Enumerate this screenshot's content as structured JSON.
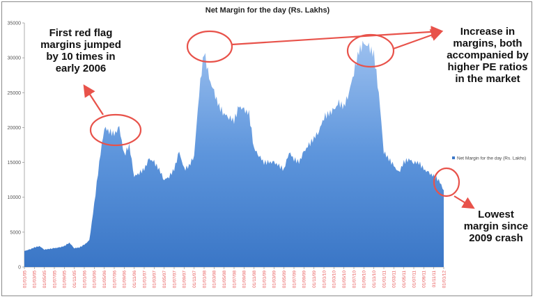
{
  "chart_data": {
    "type": "area",
    "title": "Net Margin for the day (Rs. Lakhs)",
    "xlabel": "",
    "ylabel": "",
    "ylim": [
      0,
      35000
    ],
    "yticks": [
      "0",
      "5000",
      "10000",
      "15000",
      "20000",
      "25000",
      "30000",
      "35000"
    ],
    "x_tick_labels": [
      "01/01/05",
      "01/03/05",
      "01/05/05",
      "01/07/05",
      "01/09/05",
      "01/11/05",
      "01/01/06",
      "01/03/06",
      "01/05/06",
      "01/07/06",
      "01/09/06",
      "01/11/06",
      "01/01/07",
      "01/03/07",
      "01/05/07",
      "01/07/07",
      "01/09/07",
      "01/11/07",
      "01/01/08",
      "01/03/08",
      "01/05/08",
      "01/07/08",
      "01/09/08",
      "01/11/08",
      "01/01/09",
      "01/03/09",
      "01/05/09",
      "01/07/09",
      "01/09/09",
      "01/11/09",
      "01/01/10",
      "01/03/10",
      "01/05/10",
      "01/07/10",
      "01/09/10",
      "01/11/10",
      "01/01/11",
      "01/03/11",
      "01/05/11",
      "01/07/11",
      "01/09/11",
      "01/11/11",
      "01/01/12"
    ],
    "grid": false,
    "legend": {
      "position": "right",
      "entries": [
        "Net Margin for the day (Rs. Lakhs)"
      ]
    },
    "series": [
      {
        "name": "Net Margin for the day (Rs. Lakhs)",
        "color": "#3b78c8",
        "values": [
          2300,
          2500,
          2800,
          3000,
          2500,
          2600,
          2700,
          2800,
          3000,
          3500,
          2700,
          2800,
          3200,
          3800,
          9000,
          15000,
          20000,
          19500,
          19000,
          20000,
          16000,
          17500,
          13000,
          13500,
          14000,
          15500,
          15000,
          14000,
          12500,
          13000,
          14000,
          16500,
          14000,
          14500,
          16000,
          25000,
          31000,
          27000,
          25000,
          23000,
          22000,
          21500,
          21000,
          23000,
          22500,
          22000,
          17000,
          16000,
          15000,
          15000,
          15000,
          14500,
          14000,
          16500,
          15500,
          15000,
          16500,
          17500,
          18500,
          19500,
          21500,
          22000,
          22500,
          23500,
          23000,
          25000,
          28000,
          31000,
          32000,
          31500,
          30500,
          25000,
          16500,
          15500,
          14500,
          13500,
          15000,
          15500,
          15000,
          15000,
          14000,
          13500,
          13000,
          12500,
          11000
        ]
      }
    ],
    "annotations": [
      {
        "id": "red-flag",
        "lines": [
          "First red flag",
          "margins jumped",
          "by 10 times in",
          "early 2006"
        ]
      },
      {
        "id": "increase",
        "lines": [
          "Increase in",
          "margins, both",
          "accompanied by",
          "higher PE ratios",
          "in the market"
        ]
      },
      {
        "id": "lowest",
        "lines": [
          "Lowest",
          "margin since",
          "2009 crash"
        ]
      }
    ],
    "annotation_color": "#e8524a"
  }
}
